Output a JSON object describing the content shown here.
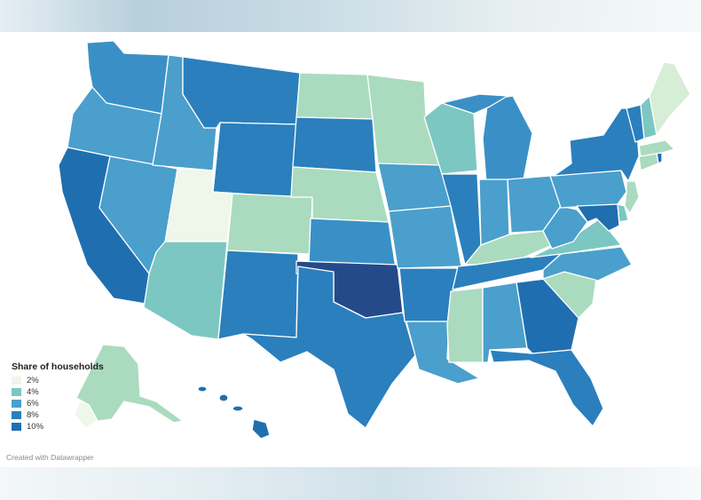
{
  "colors": {
    "scale_2": "#eef7e9",
    "scale_3": "#aadbbf",
    "scale_4": "#7cc7c2",
    "scale_6": "#4a9fcc",
    "scale_7": "#3a90c6",
    "scale_8": "#2b7fbd",
    "scale_9": "#1f6fb0",
    "scale_10": "#254a8a"
  },
  "legend": {
    "title": "Share of households",
    "items": [
      {
        "label": "2%",
        "color": "#eef7e9"
      },
      {
        "label": "4%",
        "color": "#7cc7c2"
      },
      {
        "label": "6%",
        "color": "#4a9fcc"
      },
      {
        "label": "8%",
        "color": "#2b7fbd"
      },
      {
        "label": "10%",
        "color": "#1f6fb0"
      }
    ]
  },
  "credit": "Created with Datawrapper"
}
